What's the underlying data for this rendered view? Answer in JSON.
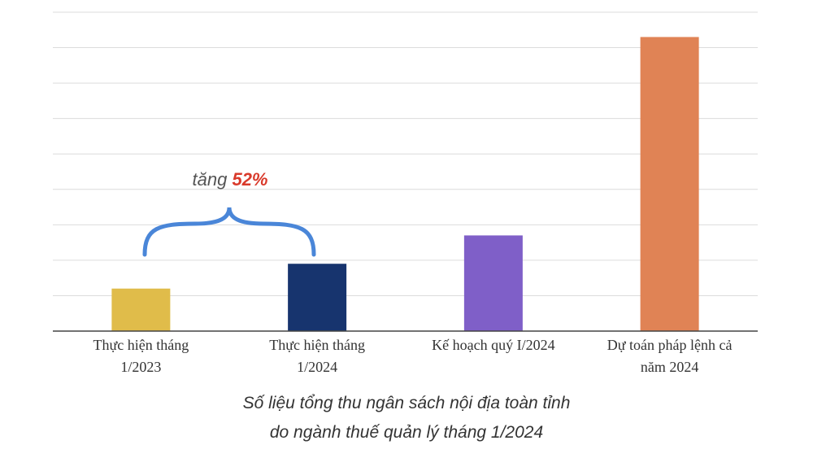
{
  "chart_data": {
    "type": "bar",
    "title": "Số liệu tổng thu ngân sách nội địa toàn tỉnh\ndo ngành thuế quản lý tháng 1/2024",
    "categories": [
      "Thực hiện tháng\n1/2023",
      "Thực hiện tháng\n1/2024",
      "Kế hoạch quý I/2024",
      "Dự toán pháp lệnh cả\nnăm 2024"
    ],
    "values": [
      1.2,
      1.9,
      2.7,
      8.3
    ],
    "colors": [
      "#e0bc4a",
      "#17346e",
      "#7f5fc8",
      "#e08355"
    ],
    "ylim": [
      0,
      9
    ],
    "yticks": [
      0,
      1,
      2,
      3,
      4,
      5,
      6,
      7,
      8,
      9
    ],
    "grid": true,
    "annotation": {
      "text": "tăng",
      "emphasis": "52%"
    }
  }
}
